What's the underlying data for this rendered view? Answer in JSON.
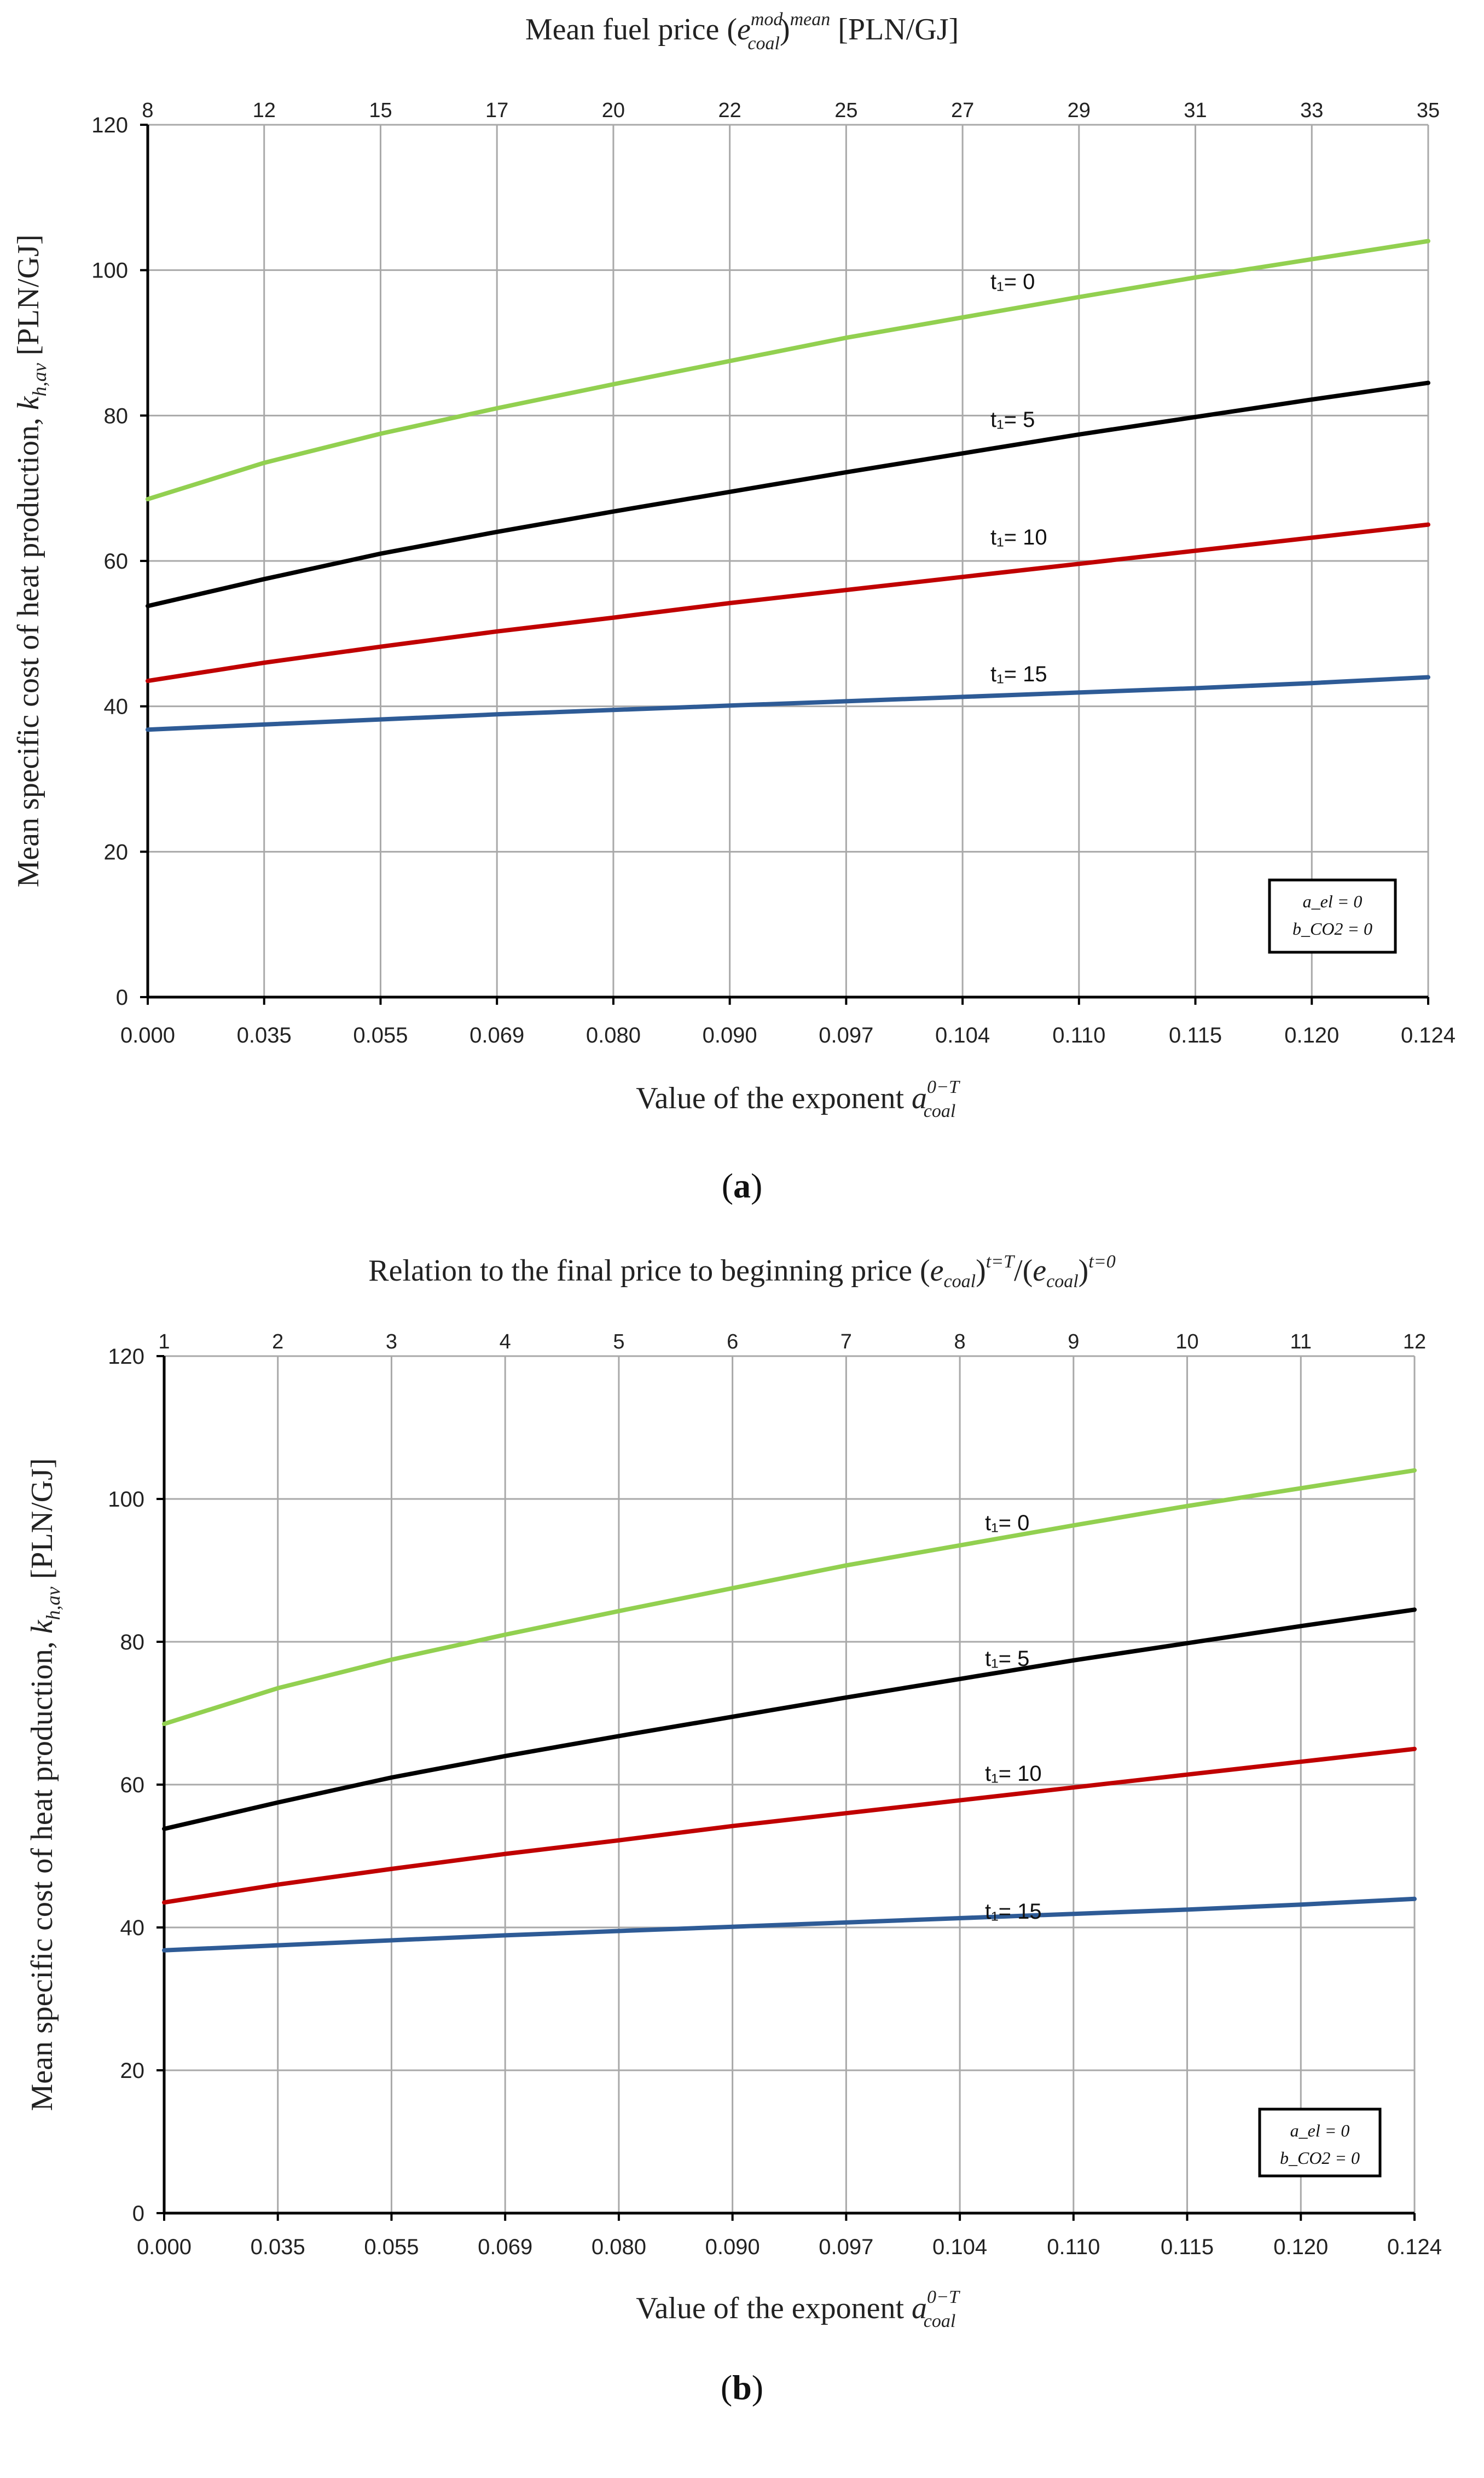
{
  "chart_data": [
    {
      "panel": "a",
      "type": "line",
      "caption": "a",
      "title": "Mean fuel price (e_coal^mod)^mean [PLN/GJ]",
      "top_title_parts": {
        "lead": "Mean fuel price (",
        "sym": "e",
        "sup": "mod",
        "sub": "coal",
        "mid": ")",
        "sup2": "mean",
        "tail": " [PLN/GJ]"
      },
      "xlabel": "Value of the exponent a_coal^(0−T)",
      "xlabel_parts": {
        "lead": "Value of the exponent ",
        "sym": "a",
        "sup": "0−T",
        "sub": "coal"
      },
      "ylabel": "Mean specific cost of heat production, k_h,av [PLN/GJ]",
      "ylabel_parts": {
        "lead": "Mean specific cost of heat production, ",
        "sym": "k",
        "sub": "h,av",
        "tail": " [PLN/GJ]"
      },
      "x_categories": [
        "0.000",
        "0.035",
        "0.055",
        "0.069",
        "0.080",
        "0.090",
        "0.097",
        "0.104",
        "0.110",
        "0.115",
        "0.120",
        "0.124"
      ],
      "top_categories": [
        "8",
        "12",
        "15",
        "17",
        "20",
        "22",
        "25",
        "27",
        "29",
        "31",
        "33",
        "35"
      ],
      "yticks": [
        0,
        20,
        40,
        60,
        80,
        100,
        120
      ],
      "ylim": [
        0,
        120
      ],
      "grid": true,
      "legend": {
        "position": "bottom-right",
        "lines": [
          "a_el = 0",
          "b_CO2 = 0"
        ]
      },
      "series": [
        {
          "name": "t₁= 0",
          "color": "#92d050",
          "values": [
            68.5,
            73.5,
            77.5,
            81.0,
            84.3,
            87.5,
            90.7,
            93.5,
            96.3,
            99.0,
            101.5,
            104.0
          ]
        },
        {
          "name": "t₁= 5",
          "color": "#000000",
          "values": [
            53.8,
            57.5,
            61.0,
            64.0,
            66.8,
            69.5,
            72.2,
            74.8,
            77.4,
            79.8,
            82.2,
            84.5
          ]
        },
        {
          "name": "t₁= 10",
          "color": "#c00000",
          "values": [
            43.5,
            46.0,
            48.2,
            50.3,
            52.2,
            54.2,
            56.0,
            57.8,
            59.6,
            61.4,
            63.2,
            65.0
          ]
        },
        {
          "name": "t₁= 15",
          "color": "#2e5b96",
          "values": [
            36.8,
            37.5,
            38.2,
            38.9,
            39.5,
            40.1,
            40.7,
            41.3,
            41.9,
            42.5,
            43.2,
            44.0
          ]
        }
      ]
    },
    {
      "panel": "b",
      "type": "line",
      "caption": "b",
      "title": "Relation to the final price to beginning price (e_coal)^(t=T)/(e_coal)^(t=0)",
      "top_title_parts": {
        "lead": "Relation to the final price to beginning price  (",
        "sym": "e",
        "sub": "coal",
        "mid": ")",
        "sup": "t=T",
        "slash": "/(",
        "sym2": "e",
        "sub2": "coal",
        "mid2": ")",
        "sup2": "t=0"
      },
      "xlabel": "Value of the exponent a_coal^(0−T)",
      "xlabel_parts": {
        "lead": "Value of the exponent ",
        "sym": "a",
        "sup": "0−T",
        "sub": "coal"
      },
      "ylabel": "Mean specific cost of heat production, k_h,av [PLN/GJ]",
      "ylabel_parts": {
        "lead": "Mean specific cost of heat production, ",
        "sym": "k",
        "sub": "h,av",
        "tail": " [PLN/GJ]"
      },
      "x_categories": [
        "0.000",
        "0.035",
        "0.055",
        "0.069",
        "0.080",
        "0.090",
        "0.097",
        "0.104",
        "0.110",
        "0.115",
        "0.120",
        "0.124"
      ],
      "top_categories": [
        "1",
        "2",
        "3",
        "4",
        "5",
        "6",
        "7",
        "8",
        "9",
        "10",
        "11",
        "12"
      ],
      "yticks": [
        0,
        20,
        40,
        60,
        80,
        100,
        120
      ],
      "ylim": [
        0,
        120
      ],
      "grid": true,
      "legend": {
        "position": "bottom-right",
        "lines": [
          "a_el = 0",
          "b_CO2 = 0"
        ]
      },
      "series": [
        {
          "name": "t₁= 0",
          "color": "#92d050",
          "values": [
            68.5,
            73.5,
            77.5,
            81.0,
            84.3,
            87.5,
            90.7,
            93.5,
            96.3,
            99.0,
            101.5,
            104.0
          ]
        },
        {
          "name": "t₁= 5",
          "color": "#000000",
          "values": [
            53.8,
            57.5,
            61.0,
            64.0,
            66.8,
            69.5,
            72.2,
            74.8,
            77.4,
            79.8,
            82.2,
            84.5
          ]
        },
        {
          "name": "t₁= 10",
          "color": "#c00000",
          "values": [
            43.5,
            46.0,
            48.2,
            50.3,
            52.2,
            54.2,
            56.0,
            57.8,
            59.6,
            61.4,
            63.2,
            65.0
          ]
        },
        {
          "name": "t₁= 15",
          "color": "#2e5b96",
          "values": [
            36.8,
            37.5,
            38.2,
            38.9,
            39.5,
            40.1,
            40.7,
            41.3,
            41.9,
            42.5,
            43.2,
            44.0
          ]
        }
      ]
    }
  ]
}
